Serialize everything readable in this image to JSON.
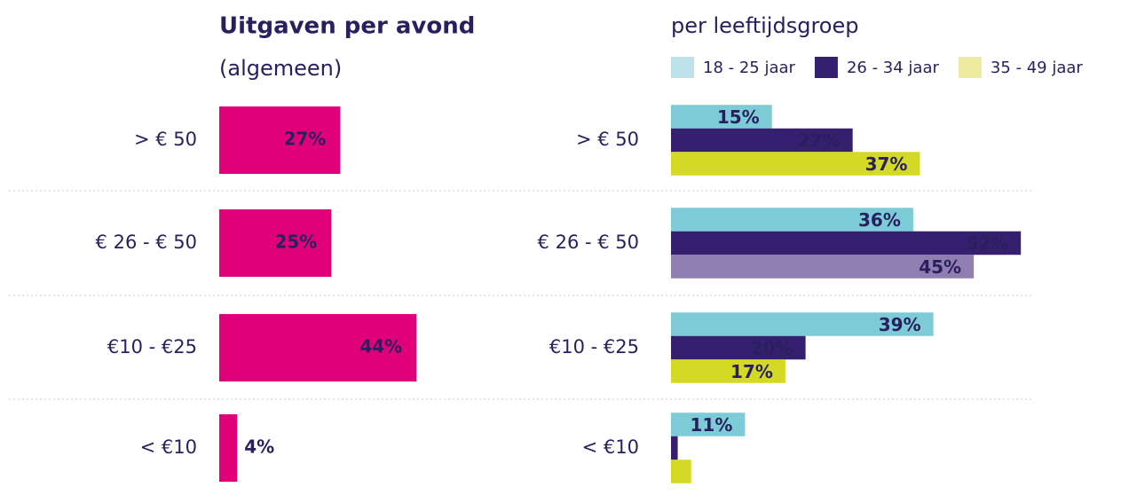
{
  "chart_data": [
    {
      "type": "bar",
      "title": "Uitgaven per avond",
      "subtitle": "(algemeen)",
      "categories": [
        "> € 50",
        "€ 26 - € 50",
        "€10 - €25",
        "< €10"
      ],
      "values": [
        27,
        25,
        44,
        4
      ],
      "value_labels": [
        "27%",
        "25%",
        "44%",
        "4%"
      ],
      "color": "#e0007a"
    },
    {
      "type": "grouped-bar",
      "title": "per  leeftijdsgroep",
      "categories": [
        "> € 50",
        "€ 26 - € 50",
        "€10 - €25",
        "< €10"
      ],
      "series": [
        {
          "name": "18 - 25 jaar",
          "color": "#bde3ea",
          "colors": [
            "#7ccbd6",
            "#7ccbd6",
            "#7ccbd6",
            "#7ccbd6"
          ],
          "values": [
            15,
            36,
            39,
            11
          ],
          "value_labels": [
            "15%",
            "36%",
            "39%",
            "11%"
          ]
        },
        {
          "name": "26 - 34 jaar",
          "color": "#34206f",
          "colors": [
            "#34206f",
            "#34206f",
            "#34206f",
            "#34206f"
          ],
          "values": [
            27,
            52,
            20,
            1
          ],
          "value_labels": [
            "27%",
            "52%",
            "20%",
            null
          ]
        },
        {
          "name": "35 - 49 jaar",
          "color": "#eceba0",
          "colors": [
            "#d4d925",
            "#8f7fb0",
            "#d4d925",
            "#d4d925"
          ],
          "values": [
            37,
            45,
            17,
            3
          ],
          "value_labels": [
            "37%",
            "45%",
            "17%",
            null
          ]
        }
      ]
    }
  ]
}
